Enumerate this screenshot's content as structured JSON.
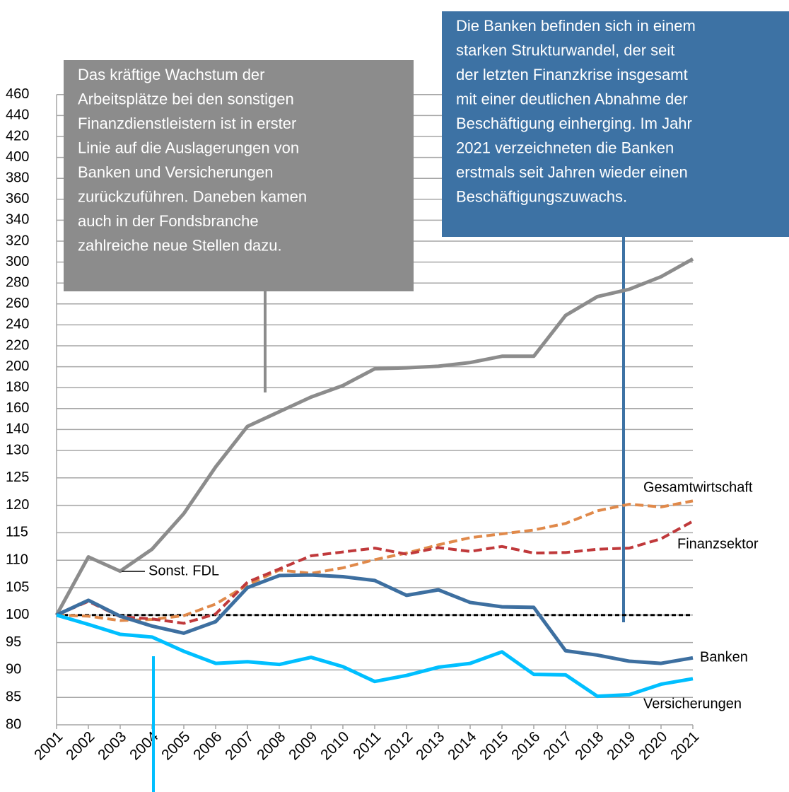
{
  "chart_data": {
    "type": "line",
    "categories": [
      "2001",
      "2002",
      "2003",
      "2004",
      "2005",
      "2006",
      "2007",
      "2008",
      "2009",
      "2010",
      "2011",
      "2012",
      "2013",
      "2014",
      "2015",
      "2016",
      "2017",
      "2018",
      "2019",
      "2020",
      "2021"
    ],
    "series": [
      {
        "name": "Sonst. FDL",
        "color": "#8c8c8c",
        "dash": false,
        "values": [
          100,
          110.6,
          108,
          112,
          118.5,
          127,
          143,
          157,
          171,
          182,
          198,
          199,
          200.5,
          204,
          210,
          210,
          249,
          267,
          274,
          286,
          303
        ]
      },
      {
        "name": "Gesamtwirtschaft",
        "color": "#e0894a",
        "dash": true,
        "values": [
          100,
          99.8,
          99,
          99.2,
          99.9,
          102,
          105.5,
          108.2,
          107.6,
          108.6,
          110.1,
          111.3,
          112.8,
          114.1,
          114.8,
          115.5,
          116.7,
          119,
          120.2,
          119.7,
          120.8
        ]
      },
      {
        "name": "Finanzsektor",
        "color": "#c0393b",
        "dash": true,
        "values": [
          100,
          102.5,
          99.7,
          99.3,
          98.5,
          100.2,
          106,
          108.4,
          110.8,
          111.5,
          112.2,
          111.1,
          112.3,
          111.6,
          112.5,
          111.3,
          111.4,
          112,
          112.2,
          113.9,
          117.1
        ]
      },
      {
        "name": "Banken",
        "color": "#3d6fa0",
        "dash": false,
        "values": [
          100,
          102.7,
          99.8,
          98,
          96.7,
          98.8,
          105,
          107.2,
          107.3,
          107,
          106.3,
          103.6,
          104.6,
          102.3,
          101.5,
          101.4,
          93.5,
          92.7,
          91.6,
          91.2,
          92.2
        ]
      },
      {
        "name": "Versicherungen",
        "color": "#00bfff",
        "dash": false,
        "values": [
          100,
          98.3,
          96.5,
          96,
          93.4,
          91.2,
          91.5,
          91,
          92.3,
          90.6,
          87.9,
          89,
          90.5,
          91.2,
          93.3,
          89.2,
          89.1,
          85.2,
          85.5,
          87.4,
          88.4
        ]
      }
    ],
    "reference": 100,
    "ylim": [
      80,
      460
    ],
    "ybreak": 130,
    "yticks": [
      80,
      85,
      90,
      95,
      100,
      105,
      110,
      115,
      120,
      125,
      130,
      140,
      160,
      180,
      200,
      220,
      240,
      260,
      280,
      300,
      320,
      340,
      360,
      380,
      400,
      420,
      440,
      460
    ],
    "grid": true,
    "annotations": [
      {
        "color": "#8c8c8c",
        "lines": [
          "Das kräftige Wachstum der",
          "Arbeitsplätze bei den sonstigen",
          "Finanzdienstleistern ist in erster",
          "Linie auf die Auslagerungen von",
          "Banken und Versicherungen",
          "zurückzuführen. Daneben kamen",
          "auch in der Fondsbranche",
          "zahlreiche neue Stellen dazu."
        ]
      },
      {
        "color": "#3d72a4",
        "lines": [
          "Die Banken befinden sich in einem",
          "starken Strukturwandel, der seit",
          "der letzten Finanzkrise insgesamt",
          "mit einer deutlichen Abnahme der",
          "Beschäftigung einherging. Im Jahr",
          "2021 verzeichneten die Banken",
          "erstmals seit Jahren wieder einen",
          "Beschäftigungszuwachs."
        ]
      }
    ]
  }
}
